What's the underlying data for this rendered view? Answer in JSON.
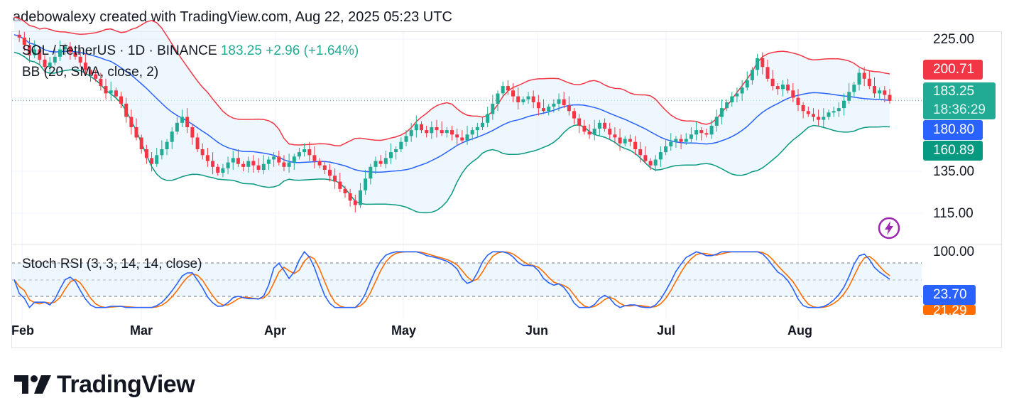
{
  "header": {
    "attribution": "adebowalexy created with TradingView.com, Aug 22, 2025 05:23 UTC"
  },
  "legend": {
    "symbol": "SOL / TetherUS · 1D · BINANCE",
    "last": "183.25",
    "change": "+2.96 (+1.64%)",
    "indicator": "BB (20, SMA, close, 2)",
    "oscillator": "Stoch RSI (3, 3, 14, 14, close)"
  },
  "price_axis": [
    "225.00",
    "135.00",
    "115.00"
  ],
  "osc_axis": [
    "100.00"
  ],
  "badges": {
    "bb_upper": "200.71",
    "last_price": "183.25",
    "countdown": "18:36:29",
    "bb_basis": "180.80",
    "bb_lower": "160.89",
    "stoch_k": "23.70",
    "stoch_d": "21.29"
  },
  "time_axis": [
    "Feb",
    "Mar",
    "Apr",
    "May",
    "Jun",
    "Jul",
    "Aug"
  ],
  "brand": {
    "name": "TradingView"
  },
  "colors": {
    "up": "#22ab94",
    "down": "#f23645",
    "bb_upper": "#f23645",
    "bb_basis": "#2962ff",
    "bb_lower": "#089981",
    "bb_fill": "#e3f2fd",
    "k_line": "#2962ff",
    "d_line": "#ff6d00",
    "badge_last": "#22ab94",
    "badge_basis": "#2962ff",
    "badge_lower": "#089981",
    "badge_upper": "#f23645"
  },
  "chart_data": [
    {
      "type": "candlestick",
      "title": "SOL / TetherUS · 1D · BINANCE",
      "timeframe": "1D",
      "x_labels": [
        "Feb",
        "Mar",
        "Apr",
        "May",
        "Jun",
        "Jul",
        "Aug"
      ],
      "last_price": 183.25,
      "overlays": [
        {
          "name": "BB upper",
          "last": 200.71
        },
        {
          "name": "BB basis",
          "last": 180.8
        },
        {
          "name": "BB lower",
          "last": 160.89
        }
      ],
      "close_series": [
        228,
        226,
        221,
        214,
        218,
        211,
        206,
        209,
        213,
        218,
        220,
        216,
        213,
        209,
        204,
        201,
        198,
        193,
        188,
        190,
        186,
        181,
        172,
        165,
        158,
        150,
        144,
        140,
        146,
        150,
        155,
        162,
        168,
        172,
        165,
        158,
        150,
        146,
        142,
        138,
        134,
        137,
        141,
        144,
        140,
        138,
        142,
        139,
        136,
        140,
        143,
        145,
        141,
        138,
        141,
        145,
        148,
        150,
        146,
        142,
        139,
        136,
        132,
        128,
        123,
        120,
        115,
        112,
        122,
        130,
        138,
        142,
        140,
        144,
        148,
        150,
        155,
        159,
        163,
        167,
        163,
        161,
        165,
        163,
        161,
        163,
        160,
        158,
        156,
        160,
        163,
        165,
        168,
        174,
        181,
        188,
        193,
        190,
        186,
        182,
        184,
        186,
        182,
        178,
        176,
        179,
        181,
        184,
        180,
        176,
        171,
        166,
        162,
        160,
        164,
        168,
        164,
        160,
        158,
        154,
        157,
        155,
        150,
        146,
        142,
        139,
        143,
        148,
        152,
        155,
        157,
        155,
        157,
        160,
        163,
        161,
        160,
        166,
        172,
        178,
        182,
        186,
        188,
        192,
        197,
        204,
        212,
        206,
        198,
        193,
        191,
        194,
        190,
        185,
        180,
        176,
        174,
        172,
        170,
        172,
        175,
        176,
        178,
        183,
        189,
        194,
        202,
        198,
        193,
        188,
        190,
        187,
        183
      ],
      "y_axis_ticks": [
        225,
        135,
        115
      ]
    },
    {
      "type": "line",
      "title": "Stoch RSI (3, 3, 14, 14, close)",
      "series": [
        {
          "name": "K",
          "last": 23.7
        },
        {
          "name": "D",
          "last": 21.29
        }
      ],
      "ylim": [
        0,
        100
      ],
      "y_axis_ticks": [
        100
      ]
    }
  ]
}
